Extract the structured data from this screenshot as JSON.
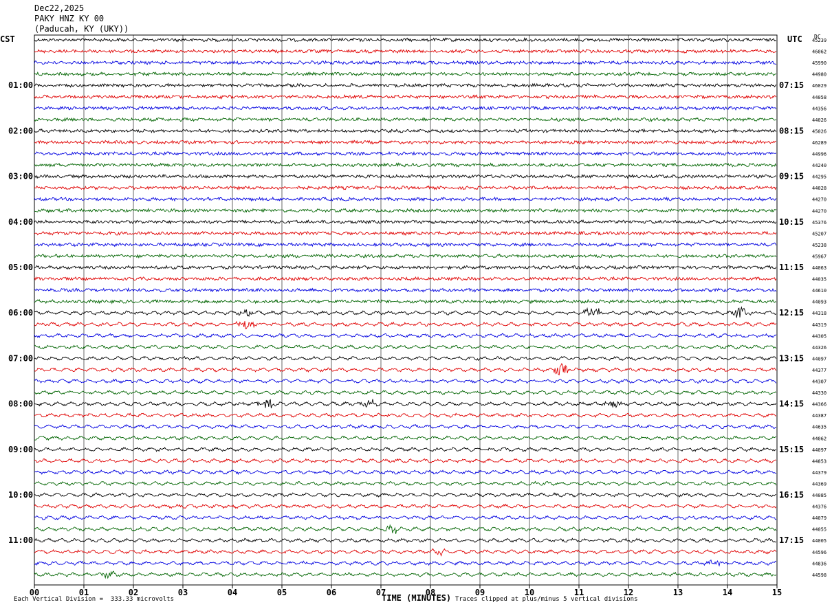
{
  "header": {
    "date": "Dec22,2025",
    "station": "PAKY HNZ KY 00",
    "location": "(Paducah, KY (UKY))"
  },
  "left_tz": "CST",
  "right_tz": "UTC",
  "dc_label": "DC",
  "footer": {
    "scale_note": "Each Vertical Division =  333.33 microvolts",
    "clip_note": "Traces clipped at plus/minus 5 vertical divisions"
  },
  "colors": {
    "trace_cycle": [
      "#000000",
      "#e00000",
      "#0000e0",
      "#006400"
    ],
    "grid": "#000000"
  },
  "chart_data": {
    "type": "line",
    "title": "PAKY HNZ KY 00",
    "xlabel": "TIME (MINUTES)",
    "xlim": [
      0,
      15
    ],
    "x_ticks": [
      "00",
      "01",
      "02",
      "03",
      "04",
      "05",
      "06",
      "07",
      "08",
      "09",
      "10",
      "11",
      "12",
      "13",
      "14",
      "15"
    ],
    "trace_count": 48,
    "left_hour_labels": [
      "01:00",
      "02:00",
      "03:00",
      "04:00",
      "05:00",
      "06:00",
      "07:00",
      "08:00",
      "09:00",
      "10:00",
      "11:00"
    ],
    "right_hour_labels": [
      "07:15",
      "08:15",
      "09:15",
      "10:15",
      "11:15",
      "12:15",
      "13:15",
      "14:15",
      "15:15",
      "16:15",
      "17:15"
    ],
    "dc_values": [
      "45239",
      "46062",
      "45990",
      "44980",
      "46029",
      "44058",
      "44356",
      "44026",
      "45026",
      "46289",
      "44996",
      "44240",
      "44295",
      "44028",
      "44270",
      "44270",
      "45376",
      "45207",
      "45238",
      "45967",
      "44063",
      "44035",
      "44610",
      "44093",
      "44318",
      "44319",
      "44305",
      "44326",
      "44097",
      "44377",
      "44307",
      "44330",
      "44366",
      "44387",
      "44635",
      "44062",
      "44097",
      "44853",
      "44379",
      "44369",
      "44085",
      "44376",
      "44079",
      "44055",
      "44005",
      "44596",
      "44836",
      "44598"
    ],
    "events": [
      {
        "trace": 24,
        "minute": 4.3,
        "amplitude": 2.2
      },
      {
        "trace": 24,
        "minute": 11.25,
        "amplitude": 3.2
      },
      {
        "trace": 24,
        "minute": 14.25,
        "amplitude": 2.8
      },
      {
        "trace": 25,
        "minute": 4.3,
        "amplitude": 2.6
      },
      {
        "trace": 29,
        "minute": 10.65,
        "amplitude": 2.6
      },
      {
        "trace": 32,
        "minute": 4.7,
        "amplitude": 2.8
      },
      {
        "trace": 32,
        "minute": 6.75,
        "amplitude": 2.2
      },
      {
        "trace": 32,
        "minute": 11.7,
        "amplitude": 1.6
      },
      {
        "trace": 43,
        "minute": 7.25,
        "amplitude": 2.2
      },
      {
        "trace": 45,
        "minute": 8.15,
        "amplitude": 2.6
      },
      {
        "trace": 46,
        "minute": 13.7,
        "amplitude": 2.0
      },
      {
        "trace": 47,
        "minute": 1.5,
        "amplitude": 1.6
      }
    ]
  }
}
